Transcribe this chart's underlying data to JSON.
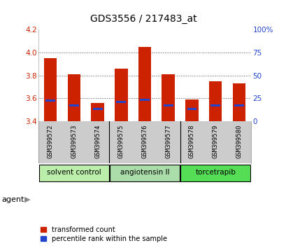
{
  "title": "GDS3556 / 217483_at",
  "samples": [
    "GSM399572",
    "GSM399573",
    "GSM399574",
    "GSM399575",
    "GSM399576",
    "GSM399577",
    "GSM399578",
    "GSM399579",
    "GSM399580"
  ],
  "red_values": [
    3.95,
    3.81,
    3.56,
    3.86,
    4.05,
    3.81,
    3.59,
    3.75,
    3.73
  ],
  "blue_values": [
    3.58,
    3.54,
    3.51,
    3.57,
    3.59,
    3.54,
    3.51,
    3.54,
    3.54
  ],
  "ylim_left": [
    3.4,
    4.2
  ],
  "ylim_right": [
    0,
    100
  ],
  "yticks_left": [
    3.4,
    3.6,
    3.8,
    4.0,
    4.2
  ],
  "yticks_right": [
    0,
    25,
    50,
    75,
    100
  ],
  "ytick_labels_right": [
    "0",
    "25",
    "50",
    "75",
    "100%"
  ],
  "bar_color": "#cc2200",
  "blue_color": "#2244cc",
  "bar_bottom": 3.4,
  "bar_width": 0.55,
  "groups": [
    {
      "label": "solvent control",
      "indices": [
        0,
        1,
        2
      ],
      "color": "#bbeeaa"
    },
    {
      "label": "angiotensin II",
      "indices": [
        3,
        4,
        5
      ],
      "color": "#aaddaa"
    },
    {
      "label": "torcetrapib",
      "indices": [
        6,
        7,
        8
      ],
      "color": "#55dd55"
    }
  ],
  "agent_label": "agent",
  "legend_items": [
    {
      "color": "#cc2200",
      "label": "transformed count"
    },
    {
      "color": "#2244cc",
      "label": "percentile rank within the sample"
    }
  ],
  "grid_color": "#555555",
  "bg_color": "#ffffff",
  "xlab_bg": "#cccccc",
  "tick_label_color_left": "#cc2200",
  "tick_label_color_right": "#2244cc",
  "title_fontsize": 10
}
